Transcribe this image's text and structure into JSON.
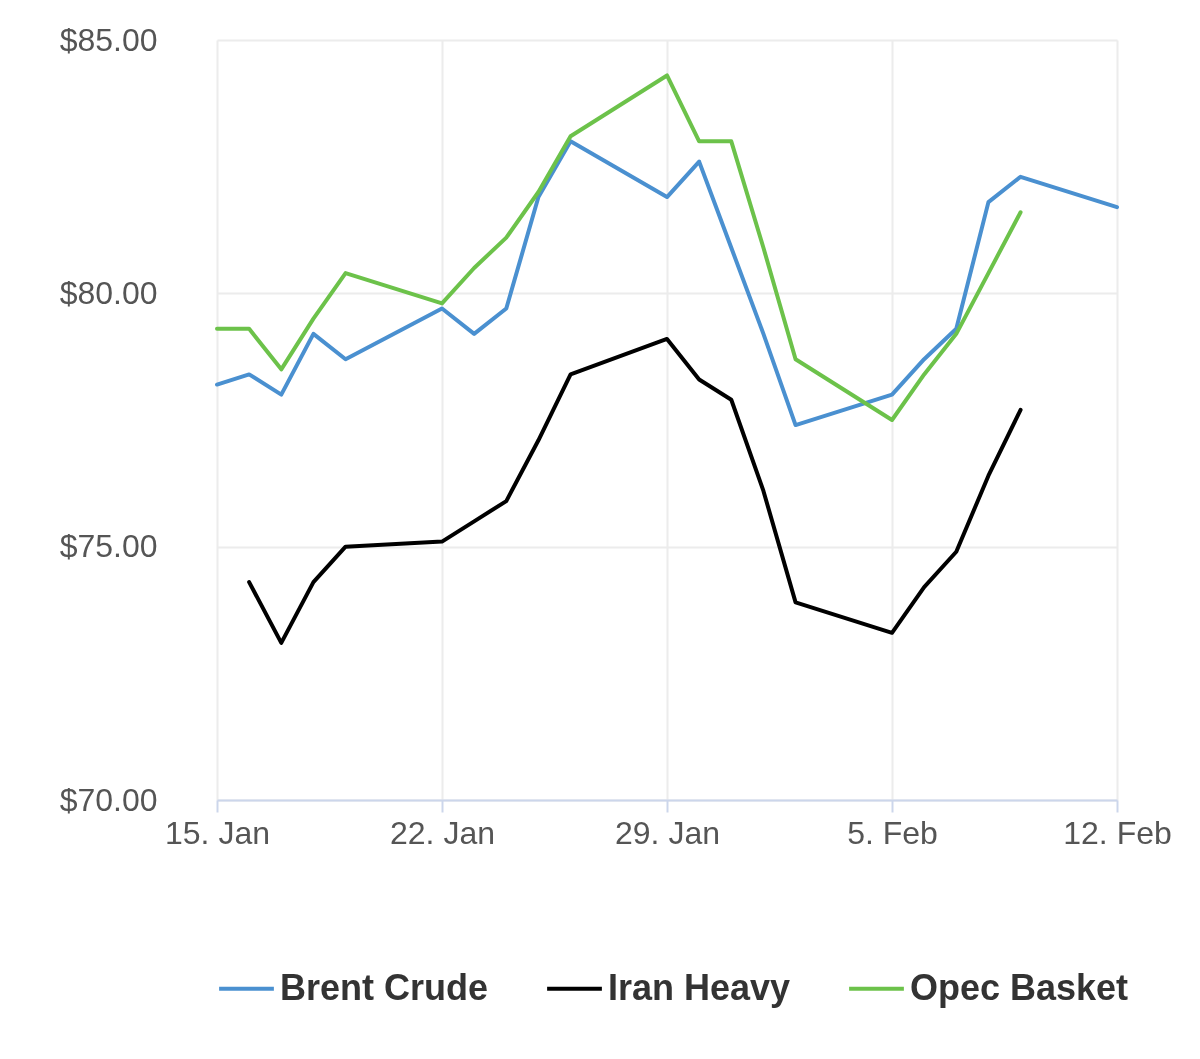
{
  "chart_data": {
    "type": "line",
    "x": [
      "--01-15",
      "--01-16",
      "--01-17",
      "--01-18",
      "--01-19",
      "--01-22",
      "--01-23",
      "--01-24",
      "--01-25",
      "--01-26",
      "--01-29",
      "--01-30",
      "--01-31",
      "--02-01",
      "--02-02",
      "--02-05",
      "--02-06",
      "--02-07",
      "--02-08",
      "--02-09",
      "--02-12"
    ],
    "series": [
      {
        "name": "Brent Crude",
        "color": "#4a90d0",
        "values": [
          78.2,
          78.4,
          78.0,
          79.2,
          78.7,
          79.7,
          79.2,
          79.7,
          81.9,
          83.0,
          81.9,
          82.6,
          80.9,
          79.2,
          77.4,
          78.0,
          78.7,
          79.3,
          81.8,
          82.3,
          81.7
        ]
      },
      {
        "name": "Iran Heavy",
        "color": "#000000",
        "values": [
          null,
          74.3,
          73.1,
          74.3,
          75.0,
          75.1,
          75.5,
          75.9,
          77.1,
          78.4,
          79.1,
          78.3,
          77.9,
          76.1,
          73.9,
          73.3,
          74.2,
          74.9,
          76.4,
          77.7,
          null
        ]
      },
      {
        "name": "Opec Basket",
        "color": "#6cc24a",
        "values": [
          79.3,
          79.3,
          78.5,
          79.5,
          80.4,
          79.8,
          80.5,
          81.1,
          82.0,
          83.1,
          84.3,
          83.0,
          83.0,
          80.9,
          78.7,
          77.5,
          78.4,
          79.2,
          80.4,
          81.6,
          null
        ]
      }
    ],
    "xlim": [
      "--01-15",
      "--02-12"
    ],
    "xticks": [
      {
        "value": "--01-15",
        "label": "15. Jan"
      },
      {
        "value": "--01-22",
        "label": "22. Jan"
      },
      {
        "value": "--01-29",
        "label": "29. Jan"
      },
      {
        "value": "--02-05",
        "label": "5. Feb"
      },
      {
        "value": "--02-12",
        "label": "12. Feb"
      }
    ],
    "ylim": [
      70,
      85
    ],
    "yticks": [
      {
        "value": 70,
        "label": "$70.00"
      },
      {
        "value": 75,
        "label": "$75.00"
      },
      {
        "value": 80,
        "label": "$80.00"
      },
      {
        "value": 85,
        "label": "$85.00"
      }
    ],
    "grid": true,
    "legend": "bottom",
    "marker": "none",
    "line_style": "solid"
  }
}
